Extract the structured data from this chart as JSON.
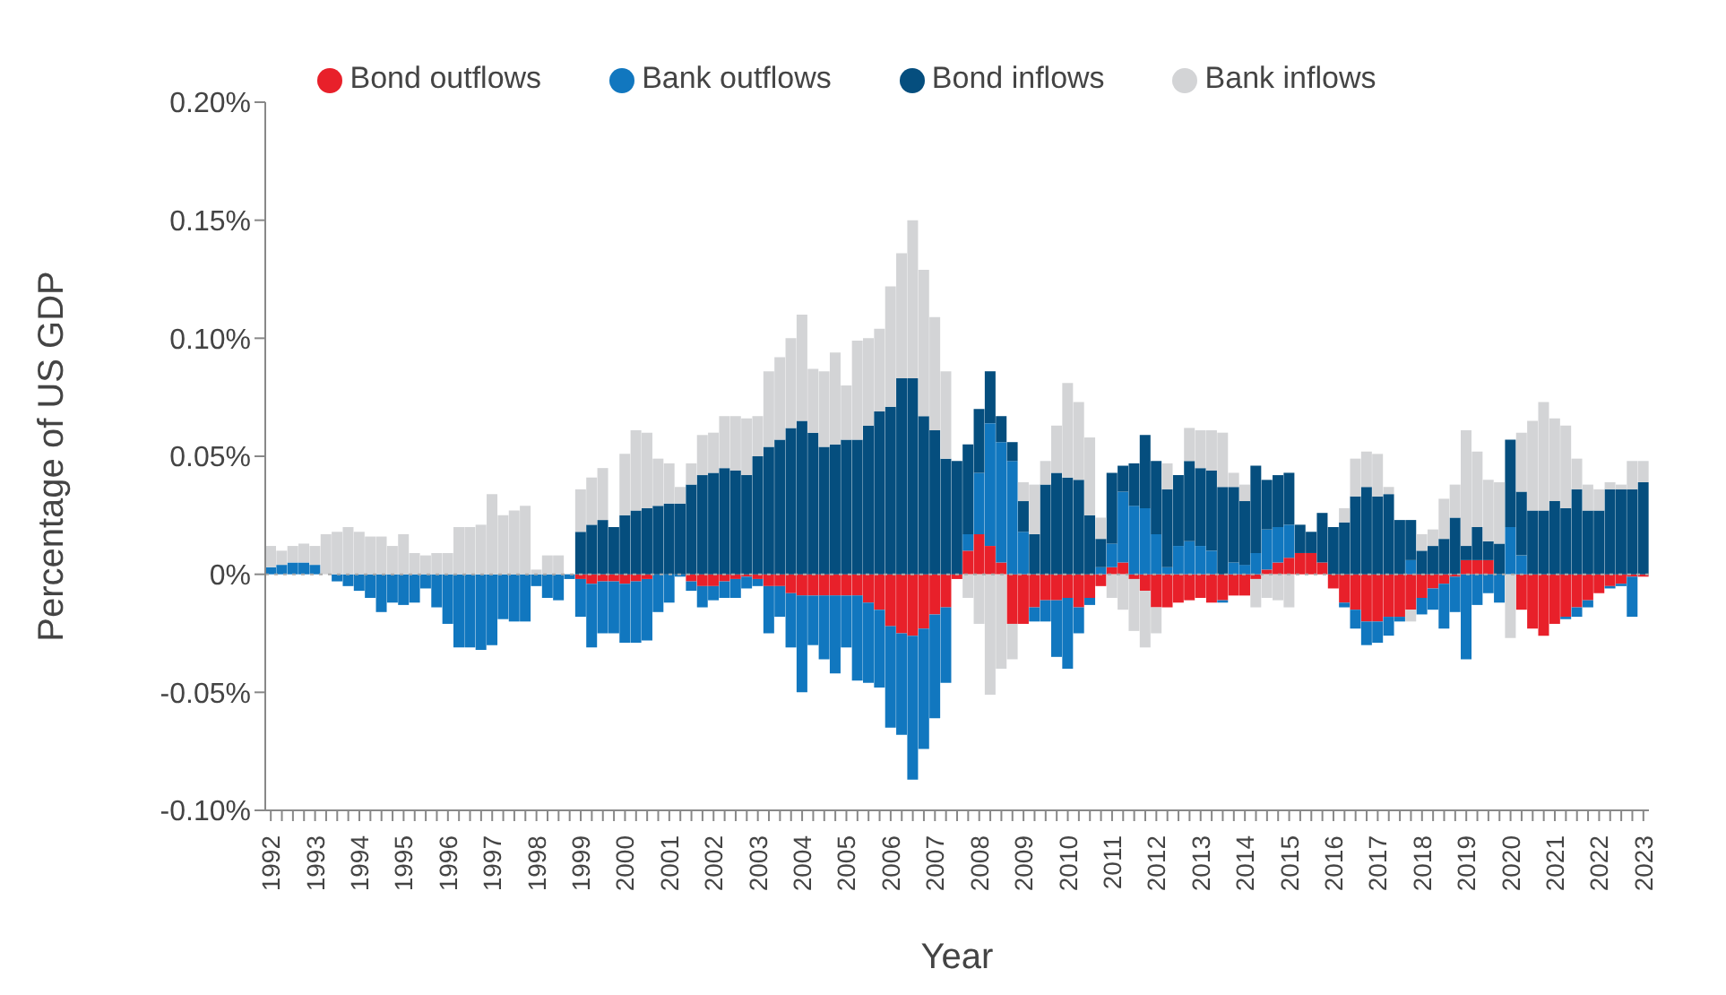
{
  "chart_data": {
    "type": "bar",
    "stacked": true,
    "xlabel": "Year",
    "ylabel": "Percentage of US GDP",
    "categories": [
      "1992",
      null,
      null,
      null,
      "1993",
      null,
      null,
      null,
      "1994",
      null,
      null,
      null,
      "1995",
      null,
      null,
      null,
      "1996",
      null,
      null,
      null,
      "1997",
      null,
      null,
      null,
      "1998",
      null,
      null,
      null,
      "1999",
      null,
      null,
      null,
      "2000",
      null,
      null,
      null,
      "2001",
      null,
      null,
      null,
      "2002",
      null,
      null,
      null,
      "2003",
      null,
      null,
      null,
      "2004",
      null,
      null,
      null,
      "2005",
      null,
      null,
      null,
      "2006",
      null,
      null,
      null,
      "2007",
      null,
      null,
      null,
      "2008",
      null,
      null,
      null,
      "2009",
      null,
      null,
      null,
      "2010",
      null,
      null,
      null,
      "2011",
      null,
      null,
      null,
      "2012",
      null,
      null,
      null,
      "2013",
      null,
      null,
      null,
      "2014",
      null,
      null,
      null,
      "2015",
      null,
      null,
      null,
      "2016",
      null,
      null,
      null,
      "2017",
      null,
      null,
      null,
      "2018",
      null,
      null,
      null,
      "2019",
      null,
      null,
      null,
      "2020",
      null,
      null,
      null,
      "2021",
      null,
      null,
      null,
      "2022",
      null,
      null,
      null,
      "2023"
    ],
    "series": [
      {
        "name": "Bond outflows",
        "color": "#e8202a",
        "values": [
          0,
          0,
          0,
          0,
          0,
          0,
          0,
          0,
          0,
          0,
          0,
          0,
          0,
          0,
          0,
          0,
          0,
          0,
          0,
          0,
          0,
          0,
          0,
          0,
          0,
          0,
          0,
          0,
          -0.002,
          -0.004,
          -0.003,
          -0.003,
          -0.004,
          -0.003,
          -0.002,
          0,
          0,
          0,
          -0.003,
          -0.005,
          -0.005,
          -0.003,
          -0.002,
          -0.001,
          -0.002,
          -0.005,
          -0.005,
          -0.008,
          -0.009,
          -0.009,
          -0.009,
          -0.009,
          -0.009,
          -0.009,
          -0.012,
          -0.015,
          -0.022,
          -0.025,
          -0.026,
          -0.023,
          -0.017,
          -0.014,
          -0.002,
          0.01,
          0.017,
          0.012,
          0.005,
          -0.021,
          -0.021,
          -0.014,
          -0.011,
          -0.011,
          -0.01,
          -0.014,
          -0.01,
          -0.005,
          0.003,
          0.005,
          -0.002,
          -0.007,
          -0.014,
          -0.014,
          -0.012,
          -0.011,
          -0.01,
          -0.012,
          -0.011,
          -0.009,
          -0.009,
          -0.002,
          0.002,
          0.005,
          0.007,
          0.009,
          0.009,
          0.005,
          -0.006,
          -0.012,
          -0.015,
          -0.02,
          -0.02,
          -0.018,
          -0.018,
          -0.015,
          -0.01,
          -0.006,
          -0.004,
          -0.001,
          0.006,
          0.006,
          0.006,
          0,
          0,
          -0.015,
          -0.023,
          -0.026,
          -0.021,
          -0.018,
          -0.014,
          -0.011,
          -0.008,
          -0.005,
          -0.004,
          -0.001,
          -0.001
        ]
      },
      {
        "name": "Bank outflows",
        "color": "#1177bf",
        "values": [
          0.003,
          0.004,
          0.005,
          0.005,
          0.004,
          0,
          -0.003,
          -0.005,
          -0.007,
          -0.01,
          -0.016,
          -0.012,
          -0.013,
          -0.012,
          -0.006,
          -0.014,
          -0.021,
          -0.031,
          -0.031,
          -0.032,
          -0.03,
          -0.019,
          -0.02,
          -0.02,
          -0.005,
          -0.01,
          -0.011,
          -0.002,
          -0.016,
          -0.027,
          -0.022,
          -0.022,
          -0.025,
          -0.026,
          -0.026,
          -0.016,
          -0.012,
          -0.001,
          -0.004,
          -0.009,
          -0.006,
          -0.007,
          -0.008,
          -0.005,
          -0.003,
          -0.02,
          -0.013,
          -0.023,
          -0.041,
          -0.021,
          -0.027,
          -0.033,
          -0.022,
          -0.036,
          -0.034,
          -0.033,
          -0.043,
          -0.043,
          -0.061,
          -0.051,
          -0.044,
          -0.032,
          0,
          0.007,
          0.026,
          0.052,
          0.051,
          0.048,
          0.018,
          -0.006,
          -0.009,
          -0.024,
          -0.03,
          -0.011,
          -0.003,
          0.003,
          0.01,
          0.03,
          0.029,
          0.028,
          0.017,
          0.003,
          0.012,
          0.014,
          0.012,
          0.01,
          -0.001,
          0.005,
          0.004,
          0.009,
          0.017,
          0.015,
          0.014,
          0,
          0,
          0,
          0,
          -0.002,
          -0.008,
          -0.01,
          -0.009,
          -0.008,
          -0.002,
          0.006,
          -0.007,
          -0.009,
          -0.019,
          -0.015,
          -0.036,
          -0.013,
          -0.008,
          -0.012,
          0.02,
          0.008,
          0,
          0,
          0,
          -0.001,
          -0.004,
          -0.003,
          0,
          -0.001,
          -0.001,
          -0.017,
          0
        ]
      },
      {
        "name": "Bond inflows",
        "color": "#054e7e",
        "values": [
          0,
          0,
          0,
          0,
          0,
          0,
          0,
          0,
          0,
          0,
          0,
          0,
          0,
          0,
          0,
          0,
          0,
          0,
          0,
          0,
          0,
          0,
          0,
          0,
          0,
          0,
          0,
          0,
          0.018,
          0.021,
          0.023,
          0.02,
          0.025,
          0.027,
          0.028,
          0.029,
          0.03,
          0.03,
          0.038,
          0.042,
          0.043,
          0.045,
          0.044,
          0.042,
          0.05,
          0.054,
          0.057,
          0.062,
          0.065,
          0.06,
          0.054,
          0.055,
          0.057,
          0.057,
          0.063,
          0.069,
          0.071,
          0.083,
          0.083,
          0.067,
          0.061,
          0.049,
          0.048,
          0.038,
          0.027,
          0.022,
          0.011,
          0.008,
          0.013,
          0.017,
          0.038,
          0.043,
          0.041,
          0.04,
          0.025,
          0.012,
          0.03,
          0.011,
          0.018,
          0.031,
          0.031,
          0.033,
          0.03,
          0.034,
          0.033,
          0.034,
          0.037,
          0.032,
          0.027,
          0.037,
          0.021,
          0.022,
          0.022,
          0.012,
          0.009,
          0.021,
          0.02,
          0.022,
          0.033,
          0.037,
          0.033,
          0.034,
          0.023,
          0.017,
          0.01,
          0.012,
          0.015,
          0.024,
          0.006,
          0.014,
          0.008,
          0.013,
          0.037,
          0.027,
          0.027,
          0.027,
          0.031,
          0.028,
          0.036,
          0.027,
          0.027,
          0.036,
          0.036,
          0.036,
          0.039
        ]
      },
      {
        "name": "Bank inflows",
        "color": "#d3d4d6",
        "values": [
          0.009,
          0.006,
          0.007,
          0.008,
          0.008,
          0.017,
          0.018,
          0.02,
          0.018,
          0.016,
          0.016,
          0.012,
          0.017,
          0.009,
          0.008,
          0.009,
          0.009,
          0.02,
          0.02,
          0.021,
          0.034,
          0.025,
          0.027,
          0.029,
          0.002,
          0.008,
          0.008,
          null,
          0.018,
          0.02,
          0.022,
          null,
          0.026,
          0.034,
          0.032,
          0.02,
          0.017,
          0.007,
          0.009,
          0.017,
          0.017,
          0.022,
          0.023,
          0.024,
          0.017,
          0.032,
          0.035,
          0.038,
          0.045,
          0.027,
          0.032,
          0.039,
          0.023,
          0.042,
          0.037,
          0.035,
          0.051,
          0.053,
          0.067,
          0.062,
          0.048,
          0.037,
          0,
          -0.01,
          -0.021,
          -0.051,
          -0.04,
          -0.015,
          0.008,
          0.021,
          0.01,
          0.02,
          0.04,
          0.033,
          0.033,
          0.009,
          -0.01,
          -0.015,
          -0.022,
          -0.024,
          -0.011,
          0.011,
          null,
          0.014,
          0.016,
          0.017,
          0.023,
          0.006,
          0.007,
          -0.012,
          -0.01,
          -0.011,
          -0.014,
          0,
          null,
          0,
          0,
          0.006,
          0.016,
          0.015,
          0.018,
          0.003,
          0,
          -0.005,
          0.007,
          0.007,
          0.017,
          0.014,
          0.049,
          0.032,
          0.026,
          0.026,
          -0.027,
          0.025,
          0.038,
          0.046,
          0.035,
          0.035,
          0.013,
          0.011,
          0.009,
          0.003,
          0.002,
          0.012,
          0.009
        ]
      }
    ],
    "ylim": [
      -0.1,
      0.2
    ],
    "yticks": [
      {
        "value": -0.1,
        "label": "-0.10%"
      },
      {
        "value": -0.05,
        "label": "-0.05%"
      },
      {
        "value": 0,
        "label": "0%"
      },
      {
        "value": 0.05,
        "label": "0.05%"
      },
      {
        "value": 0.1,
        "label": "0.10%"
      },
      {
        "value": 0.15,
        "label": "0.15%"
      },
      {
        "value": 0.2,
        "label": "0.20%"
      }
    ],
    "ref_lines": [
      {
        "axis": "y",
        "value": 0,
        "color": "#aaaaaa",
        "line_style": "dotted"
      }
    ],
    "legend": "top"
  }
}
